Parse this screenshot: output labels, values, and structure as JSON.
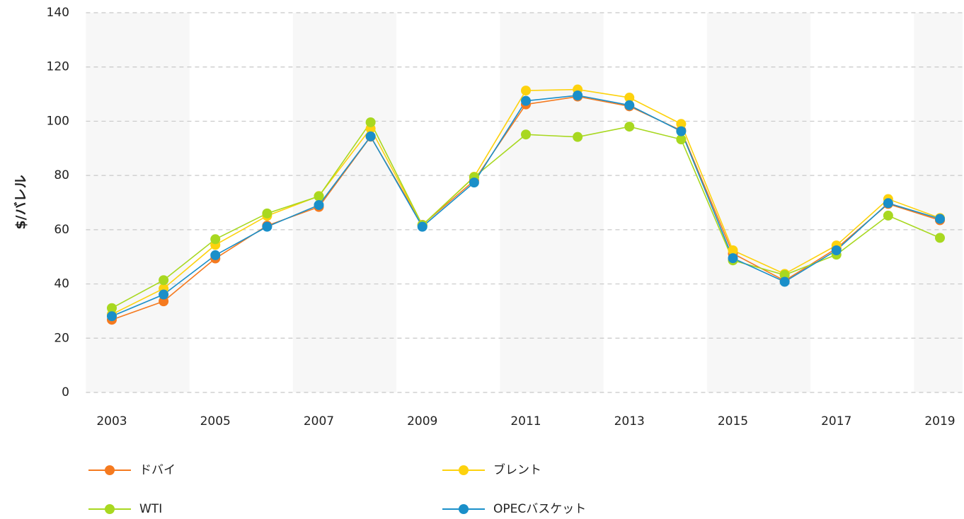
{
  "chart_data": {
    "type": "line",
    "y_label": "$/バレル",
    "categories": [
      "2003",
      null,
      "2005",
      null,
      "2007",
      null,
      "2009",
      null,
      "2011",
      null,
      "2013",
      null,
      "2015",
      null,
      "2017",
      null,
      "2019"
    ],
    "series": [
      {
        "name": "ドバイ",
        "color": "#f57a1f",
        "values": [
          26.8,
          33.6,
          49.4,
          61.5,
          68.4,
          94.3,
          61.8,
          78.1,
          106.2,
          109.1,
          105.5,
          96.6,
          51.2,
          41.2,
          53.1,
          69.5,
          63.5
        ]
      },
      {
        "name": "ブレント",
        "color": "#fdd20e",
        "values": [
          28.8,
          38.3,
          54.4,
          65.1,
          72.4,
          97.3,
          61.7,
          79.5,
          111.3,
          111.7,
          108.7,
          99.0,
          52.4,
          43.7,
          54.2,
          71.3,
          64.3
        ]
      },
      {
        "name": "WTI",
        "color": "#a8d820",
        "values": [
          31.1,
          41.4,
          56.5,
          66.0,
          72.3,
          99.6,
          61.7,
          79.4,
          95.1,
          94.2,
          98.0,
          93.3,
          48.7,
          43.3,
          50.8,
          65.2,
          57.0
        ]
      },
      {
        "name": "OPECバスケット",
        "color": "#1a8fc9",
        "values": [
          28.1,
          36.1,
          50.6,
          61.1,
          69.1,
          94.4,
          61.1,
          77.4,
          107.5,
          109.5,
          105.9,
          96.3,
          49.5,
          40.8,
          52.4,
          69.8,
          64.0
        ]
      }
    ],
    "ylim": [
      0,
      140
    ],
    "yticks": [
      0,
      20,
      40,
      60,
      80,
      100,
      120,
      140
    ],
    "grid": true
  }
}
